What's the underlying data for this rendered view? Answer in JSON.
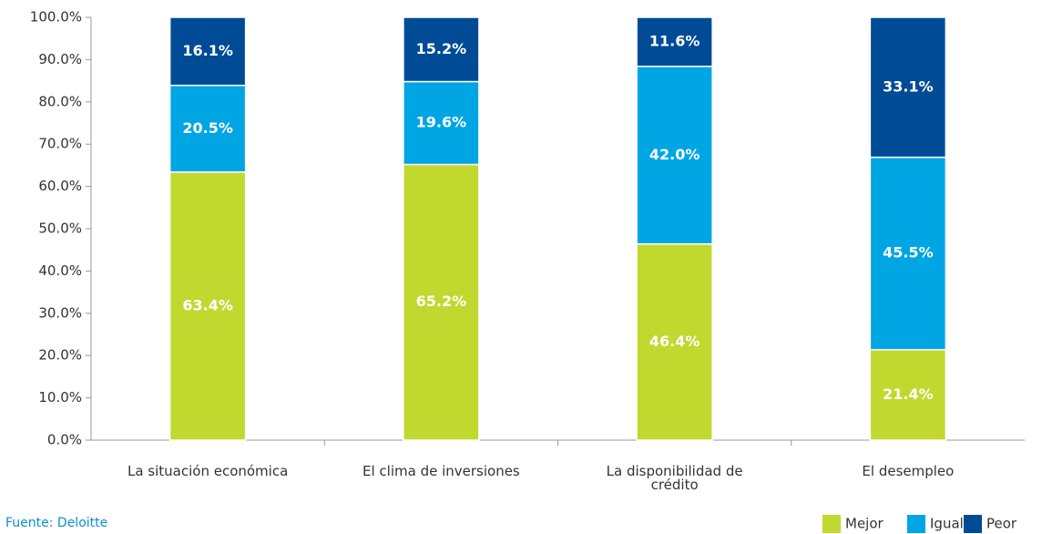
{
  "chart_data": {
    "type": "stacked_bar",
    "categories": [
      "La situación económica",
      "El clima de inversiones",
      "La disponibilidad de crédito",
      "El desempleo"
    ],
    "series": [
      {
        "name": "Mejor",
        "color": "#c1d82f",
        "values": [
          63.4,
          65.2,
          46.4,
          21.4
        ],
        "value_labels": [
          "63.4%",
          "65.2%",
          "46.4%",
          "21.4%"
        ]
      },
      {
        "name": "Igual",
        "color": "#00a5e3",
        "values": [
          20.5,
          19.6,
          42.0,
          45.5
        ],
        "value_labels": [
          "20.5%",
          "19.6%",
          "42.0%",
          "45.5%"
        ]
      },
      {
        "name": "Peor",
        "color": "#004b96",
        "values": [
          16.1,
          15.2,
          11.6,
          33.1
        ],
        "value_labels": [
          "16.1%",
          "15.2%",
          "11.6%",
          "33.1%"
        ]
      }
    ],
    "ylim": [
      0,
      100
    ],
    "yticks": [
      {
        "value": 0,
        "label": "0.0%"
      },
      {
        "value": 10,
        "label": "10.0%"
      },
      {
        "value": 20,
        "label": "20.0%"
      },
      {
        "value": 30,
        "label": "30.0%"
      },
      {
        "value": 40,
        "label": "40.0%"
      },
      {
        "value": 50,
        "label": "50.0%"
      },
      {
        "value": 60,
        "label": "60.0%"
      },
      {
        "value": 70,
        "label": "70.0%"
      },
      {
        "value": 80,
        "label": "80.0%"
      },
      {
        "value": 90,
        "label": "90.0%"
      },
      {
        "value": 100,
        "label": "100.0%"
      }
    ],
    "legend": "bottom-right",
    "source": "Fuente: Deloitte"
  }
}
